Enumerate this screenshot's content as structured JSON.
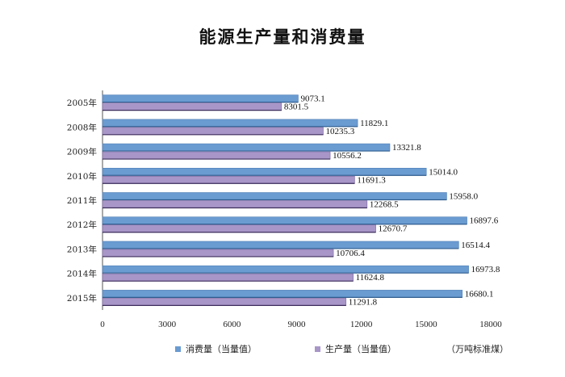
{
  "chart_data": {
    "type": "bar",
    "orientation": "horizontal",
    "title": "能源生产量和消费量",
    "unit": "（万吨标准煤）",
    "categories": [
      "2005年",
      "2008年",
      "2009年",
      "2010年",
      "2011年",
      "2012年",
      "2013年",
      "2014年",
      "2015年"
    ],
    "series": [
      {
        "name": "消费量（当量值）",
        "color": "#6a9bd1",
        "values": [
          9073.1,
          11829.1,
          13321.8,
          15014.0,
          15958.0,
          16897.6,
          16514.4,
          16973.8,
          16680.1
        ]
      },
      {
        "name": "生产量（当量值）",
        "color": "#a896c8",
        "values": [
          8301.5,
          10235.3,
          10556.2,
          11691.3,
          12268.5,
          12670.7,
          10706.4,
          11624.8,
          11291.8
        ]
      }
    ],
    "xlim": [
      0,
      18000
    ],
    "xticks": [
      "0",
      "3000",
      "6000",
      "9000",
      "12000",
      "15000",
      "18000"
    ],
    "grid": false,
    "legend_position": "bottom"
  }
}
